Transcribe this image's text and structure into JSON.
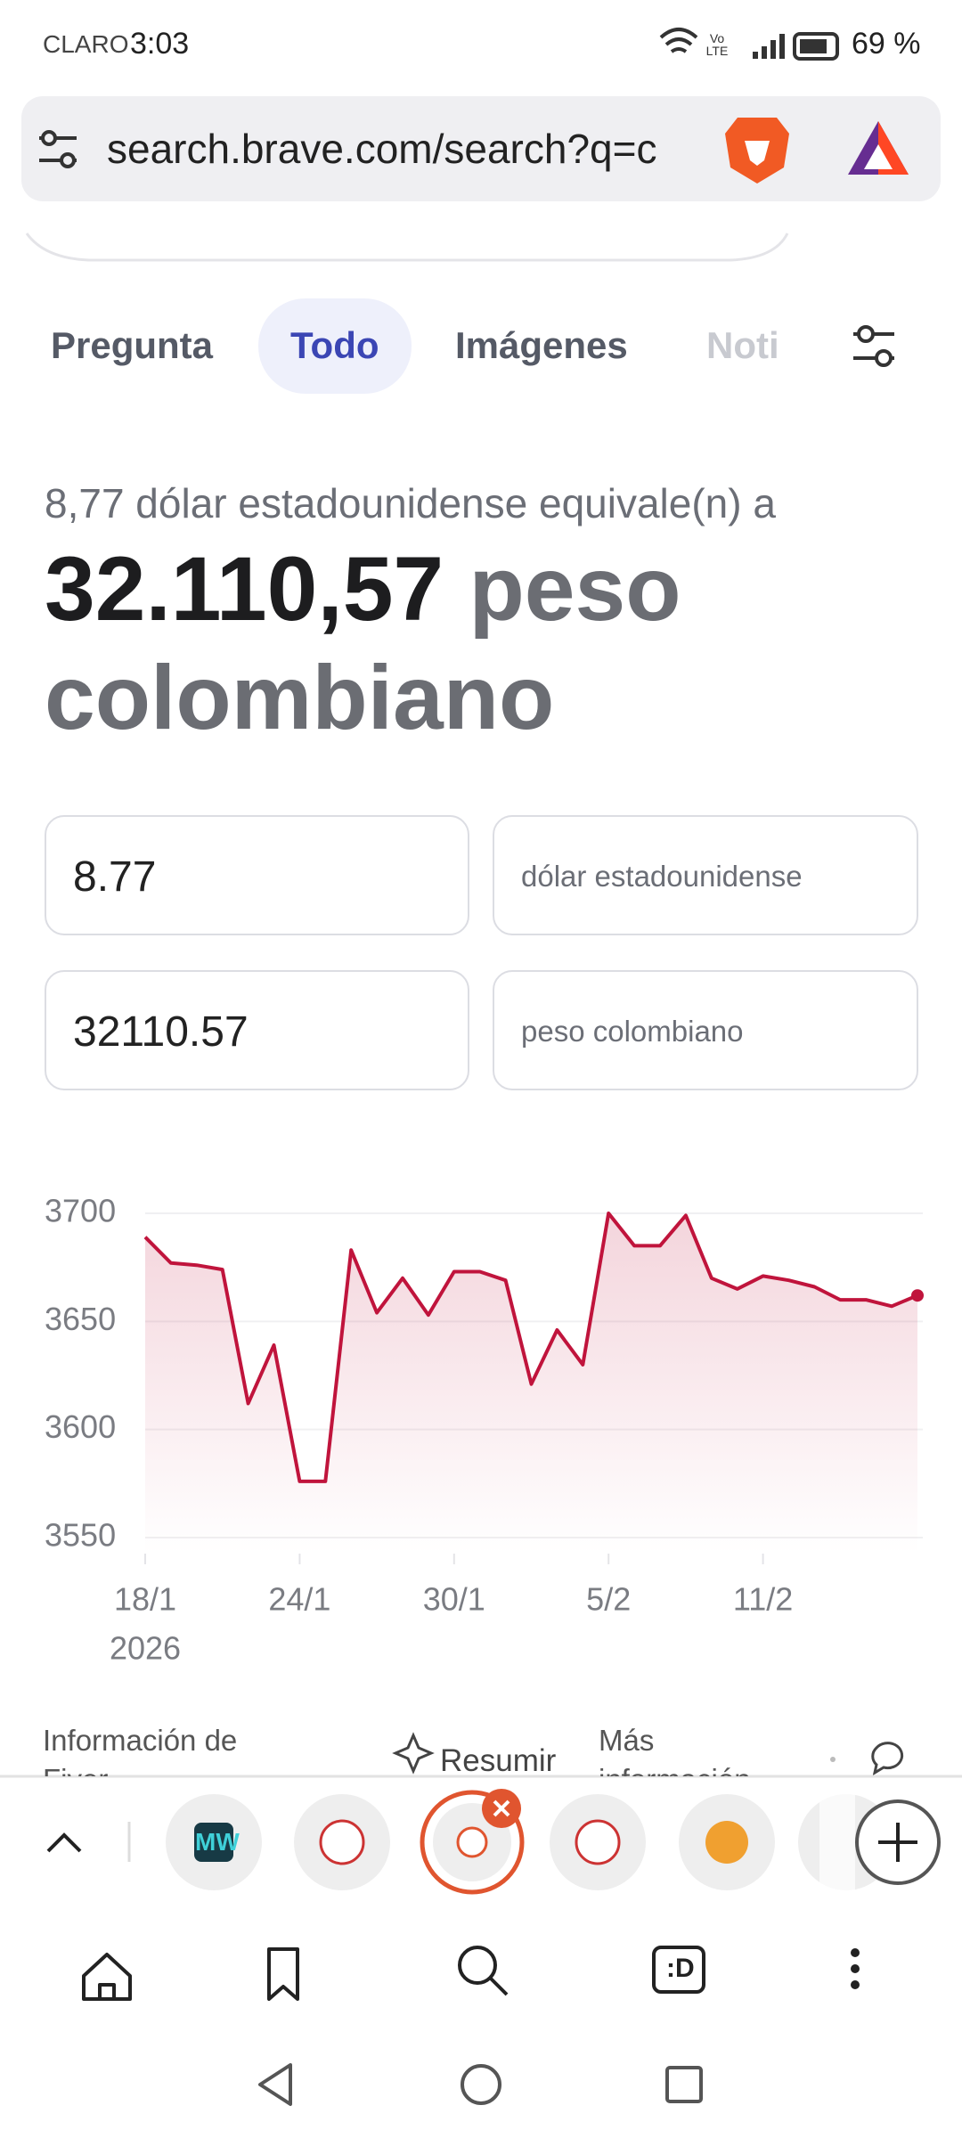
{
  "status_bar": {
    "carrier": "CLARO",
    "time": "3:03",
    "network": "Vo LTE",
    "battery": "69 %"
  },
  "url_bar": {
    "url": "search.brave.com/search?q=c"
  },
  "tabs": [
    "Pregunta",
    "Todo",
    "Imágenes",
    "Noti"
  ],
  "result": {
    "query": "8,77 dólar estadounidense equivale(n) a",
    "amount": "32.110,57",
    "unit": "peso colombiano"
  },
  "converter": {
    "from_value": "8.77",
    "from_unit": "dólar estadounidense",
    "to_value": "32110.57",
    "to_unit": "peso colombiano"
  },
  "chart_data": {
    "type": "line",
    "categories": [
      "18/1",
      null,
      null,
      null,
      null,
      null,
      "24/1",
      null,
      null,
      null,
      null,
      null,
      "30/1",
      null,
      null,
      null,
      null,
      null,
      "5/2",
      null,
      null,
      null,
      null,
      null,
      "11/2",
      null,
      null,
      null,
      null,
      null,
      null
    ],
    "x_year": "2026",
    "values": [
      3689,
      3677,
      3676,
      3674,
      3612,
      3639,
      3576,
      3576,
      3683,
      3654,
      3670,
      3653,
      3673,
      3673,
      3669,
      3621,
      3646,
      3630,
      3700,
      3685,
      3685,
      3699,
      3670,
      3665,
      3671,
      3669,
      3666,
      3660,
      3660,
      3657,
      3662
    ],
    "color": "#c0143c",
    "ylim": [
      3550,
      3700
    ],
    "yticks": [
      3550,
      3600,
      3650,
      3700
    ],
    "grid": true
  },
  "footer_links": [
    "Información de Fiver",
    "Resumir",
    "Más información"
  ],
  "tab_strip": {
    "tab_icon": "MW"
  },
  "bottom_nav": {
    "tabs_icon": ":D"
  }
}
